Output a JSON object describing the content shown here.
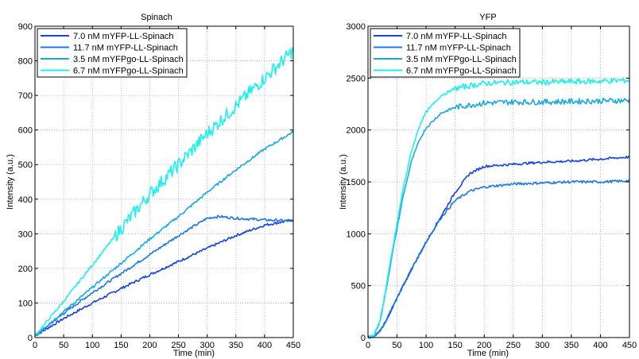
{
  "chart_data": [
    {
      "type": "line",
      "title": "Spinach",
      "xlabel": "Time (min)",
      "ylabel": "Intensity (a.u.)",
      "xlim": [
        0,
        450
      ],
      "ylim": [
        0,
        900
      ],
      "xticks": [
        0,
        50,
        100,
        150,
        200,
        250,
        300,
        350,
        400,
        450
      ],
      "yticks": [
        0,
        100,
        200,
        300,
        400,
        500,
        600,
        700,
        800,
        900
      ],
      "grid": true,
      "legend_position": "top-left",
      "series": [
        {
          "name": "7.0 nM mYFP-LL-Spinach",
          "color": "#1444e8",
          "x": [
            0,
            50,
            100,
            150,
            200,
            250,
            300,
            350,
            400,
            450
          ],
          "y": [
            5,
            55,
            100,
            142,
            182,
            220,
            258,
            295,
            325,
            340
          ]
        },
        {
          "name": "11.7 nM mYFP-LL-Spinach",
          "color": "#1878ea",
          "x": [
            0,
            50,
            100,
            150,
            200,
            250,
            300,
            320,
            350,
            400,
            450
          ],
          "y": [
            5,
            70,
            130,
            185,
            240,
            295,
            345,
            350,
            345,
            340,
            337
          ]
        },
        {
          "name": "3.5 nM mYFPgo-LL-Spinach",
          "color": "#18a8e8",
          "x": [
            0,
            50,
            100,
            150,
            200,
            250,
            300,
            350,
            400,
            450
          ],
          "y": [
            5,
            75,
            145,
            215,
            285,
            350,
            420,
            485,
            545,
            595
          ]
        },
        {
          "name": "6.7 nM mYFPgo-LL-Spinach",
          "color": "#1ef0f0",
          "x": [
            0,
            50,
            100,
            150,
            200,
            250,
            300,
            350,
            400,
            450
          ],
          "y": [
            5,
            105,
            210,
            315,
            415,
            500,
            590,
            670,
            750,
            830
          ]
        }
      ]
    },
    {
      "type": "line",
      "title": "YFP",
      "xlabel": "Time (min)",
      "ylabel": "Intensity (a.u.)",
      "xlim": [
        0,
        450
      ],
      "ylim": [
        0,
        3000
      ],
      "xticks": [
        0,
        50,
        100,
        150,
        200,
        250,
        300,
        350,
        400,
        450
      ],
      "yticks": [
        0,
        500,
        1000,
        1500,
        2000,
        2500,
        3000
      ],
      "grid": true,
      "legend_position": "top-left",
      "series": [
        {
          "name": "7.0 nM mYFP-LL-Spinach",
          "color": "#1444e8",
          "x": [
            0,
            10,
            20,
            30,
            50,
            75,
            100,
            125,
            150,
            175,
            200,
            250,
            300,
            350,
            400,
            450
          ],
          "y": [
            0,
            10,
            60,
            150,
            380,
            660,
            920,
            1160,
            1400,
            1580,
            1650,
            1670,
            1690,
            1700,
            1720,
            1740
          ]
        },
        {
          "name": "11.7 nM mYFP-LL-Spinach",
          "color": "#1878ea",
          "x": [
            0,
            10,
            20,
            30,
            50,
            75,
            100,
            125,
            150,
            175,
            200,
            250,
            300,
            350,
            400,
            450
          ],
          "y": [
            0,
            10,
            60,
            150,
            380,
            660,
            920,
            1150,
            1320,
            1410,
            1450,
            1480,
            1490,
            1500,
            1500,
            1510
          ]
        },
        {
          "name": "3.5 nM mYFPgo-LL-Spinach",
          "color": "#18a8e8",
          "x": [
            0,
            10,
            20,
            30,
            40,
            50,
            60,
            75,
            90,
            100,
            125,
            150,
            200,
            250,
            300,
            350,
            400,
            450
          ],
          "y": [
            0,
            20,
            140,
            420,
            750,
            1050,
            1350,
            1700,
            1920,
            2020,
            2160,
            2220,
            2260,
            2270,
            2270,
            2275,
            2280,
            2285
          ]
        },
        {
          "name": "6.7 nM mYFPgo-LL-Spinach",
          "color": "#1ef0f0",
          "x": [
            0,
            10,
            20,
            30,
            40,
            50,
            60,
            75,
            90,
            100,
            125,
            150,
            200,
            250,
            300,
            350,
            400,
            450
          ],
          "y": [
            0,
            20,
            150,
            440,
            780,
            1100,
            1420,
            1800,
            2060,
            2170,
            2330,
            2400,
            2450,
            2460,
            2460,
            2465,
            2470,
            2480
          ]
        }
      ]
    }
  ]
}
